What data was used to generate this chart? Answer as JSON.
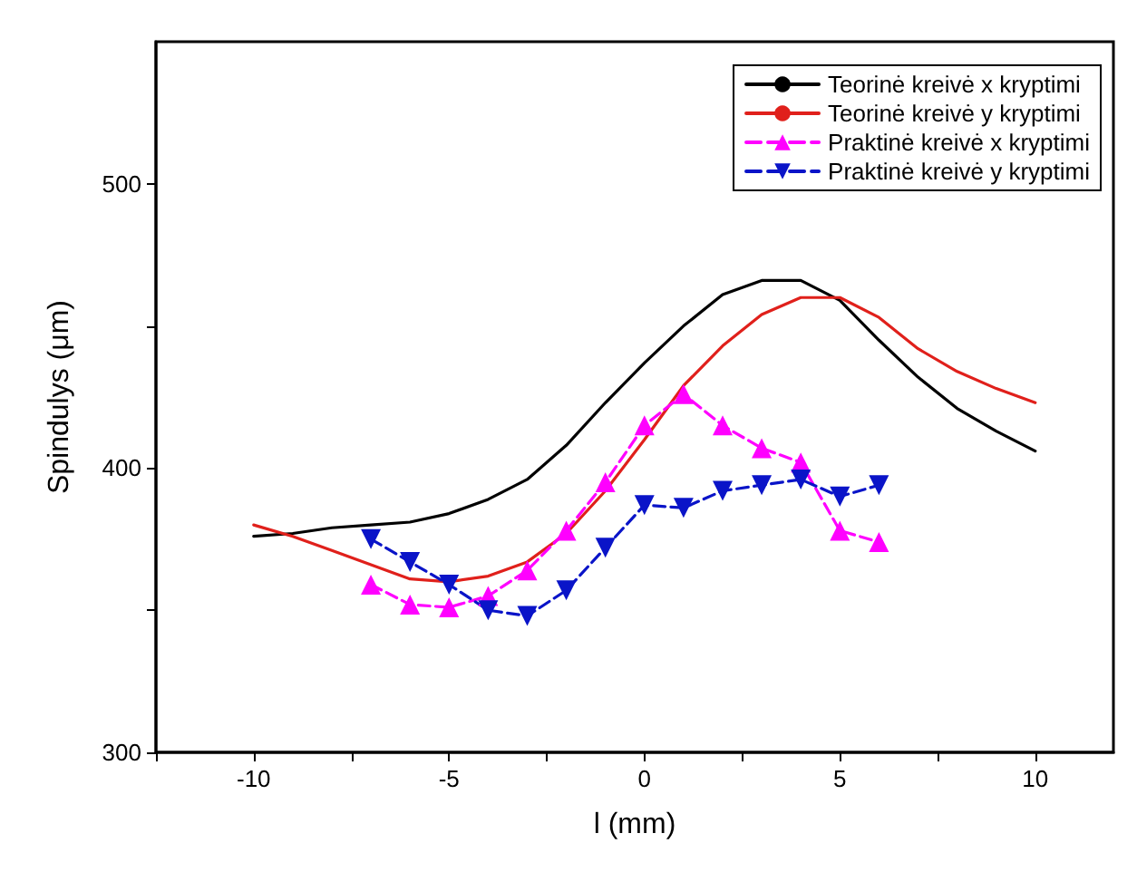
{
  "chart_data": {
    "type": "line",
    "xlabel": "l (mm)",
    "ylabel": "Spindulys (μm)",
    "xlim": [
      -12.5,
      12
    ],
    "ylim": [
      300,
      550
    ],
    "xticks": [
      {
        "value": -12.5,
        "label": null
      },
      -10,
      {
        "value": -7.5,
        "label": null
      },
      -5,
      {
        "value": -2.5,
        "label": null
      },
      0,
      {
        "value": 2.5,
        "label": null
      },
      5,
      {
        "value": 7.5,
        "label": null
      },
      10
    ],
    "yticks": [
      300,
      {
        "value": 350,
        "label": null
      },
      400,
      {
        "value": 450,
        "label": null
      },
      500
    ],
    "grid": false,
    "legend": "top right",
    "series": [
      {
        "name": "Teorinė kreivė x kryptimi",
        "color": "#000000",
        "marker": "none",
        "line_style": "solid",
        "x": [
          -10,
          -9,
          -8,
          -7,
          -6,
          -5,
          -4,
          -3,
          -2,
          -1,
          0,
          1,
          2,
          3,
          4,
          5,
          6,
          7,
          8,
          9,
          10
        ],
        "values": [
          376,
          377,
          379,
          380,
          381,
          384,
          389,
          396,
          408,
          423,
          437,
          450,
          461,
          466,
          466,
          459,
          445,
          432,
          421,
          413,
          406
        ]
      },
      {
        "name": "Teorinė kreivė y kryptimi",
        "color": "#e0201b",
        "marker": "none",
        "line_style": "solid",
        "x": [
          -10,
          -9,
          -8,
          -7,
          -6,
          -5,
          -4,
          -3,
          -2,
          -1,
          0,
          1,
          2,
          3,
          4,
          5,
          6,
          7,
          8,
          9,
          10
        ],
        "values": [
          380,
          376,
          371,
          366,
          361,
          360,
          362,
          367,
          377,
          392,
          410,
          429,
          443,
          454,
          460,
          460,
          453,
          442,
          434,
          428,
          423
        ]
      },
      {
        "name": "Praktinė kreivė x kryptimi",
        "color": "#ff00ff",
        "marker": "triangle",
        "line_style": "dashed",
        "x": [
          -7,
          -6,
          -5,
          -4,
          -3,
          -2,
          -1,
          0,
          1,
          2,
          3,
          4,
          5,
          6
        ],
        "values": [
          359,
          352,
          351,
          355,
          364,
          378,
          395,
          415,
          426,
          415,
          407,
          402,
          378,
          374
        ]
      },
      {
        "name": "Praktinė kreivė y kryptimi",
        "color": "#0a14c8",
        "marker": "triangle-down",
        "line_style": "dashed",
        "x": [
          -7,
          -6,
          -5,
          -4,
          -3,
          -2,
          -1,
          0,
          1,
          2,
          3,
          4,
          5,
          6
        ],
        "values": [
          375,
          367,
          359,
          350,
          348,
          357,
          372,
          387,
          386,
          392,
          394,
          396,
          390,
          394
        ]
      }
    ]
  }
}
